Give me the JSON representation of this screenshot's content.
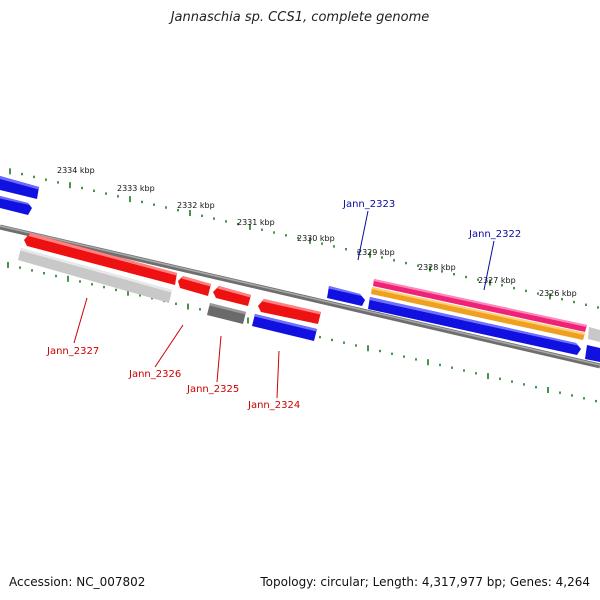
{
  "title": "Jannaschia sp. CCS1, complete genome",
  "footer": {
    "accession": "Accession: NC_007802",
    "topology": "Topology: circular; Length: 4,317,977 bp; Genes: 4,264"
  },
  "scale": {
    "labels": [
      "2334 kbp",
      "2333 kbp",
      "2332 kbp",
      "2331 kbp",
      "2330 kbp",
      "2329 kbp",
      "2328 kbp",
      "2327 kbp",
      "2326 kbp"
    ]
  },
  "genes": {
    "labels": [
      "Jann_2327",
      "Jann_2326",
      "Jann_2325",
      "Jann_2324",
      "Jann_2323",
      "Jann_2322"
    ]
  },
  "colors": {
    "forward": "#1010e0",
    "reverse": "#ee1111",
    "label_forward": "#0a0aa0",
    "label_reverse": "#cc0000",
    "tick": "#1a7a1a",
    "backbone": "#808080",
    "pseudo_light": "#c8c8c8",
    "pseudo_dark": "#6a6a6a",
    "pink": "#ee2277",
    "orange": "#f0a020"
  }
}
